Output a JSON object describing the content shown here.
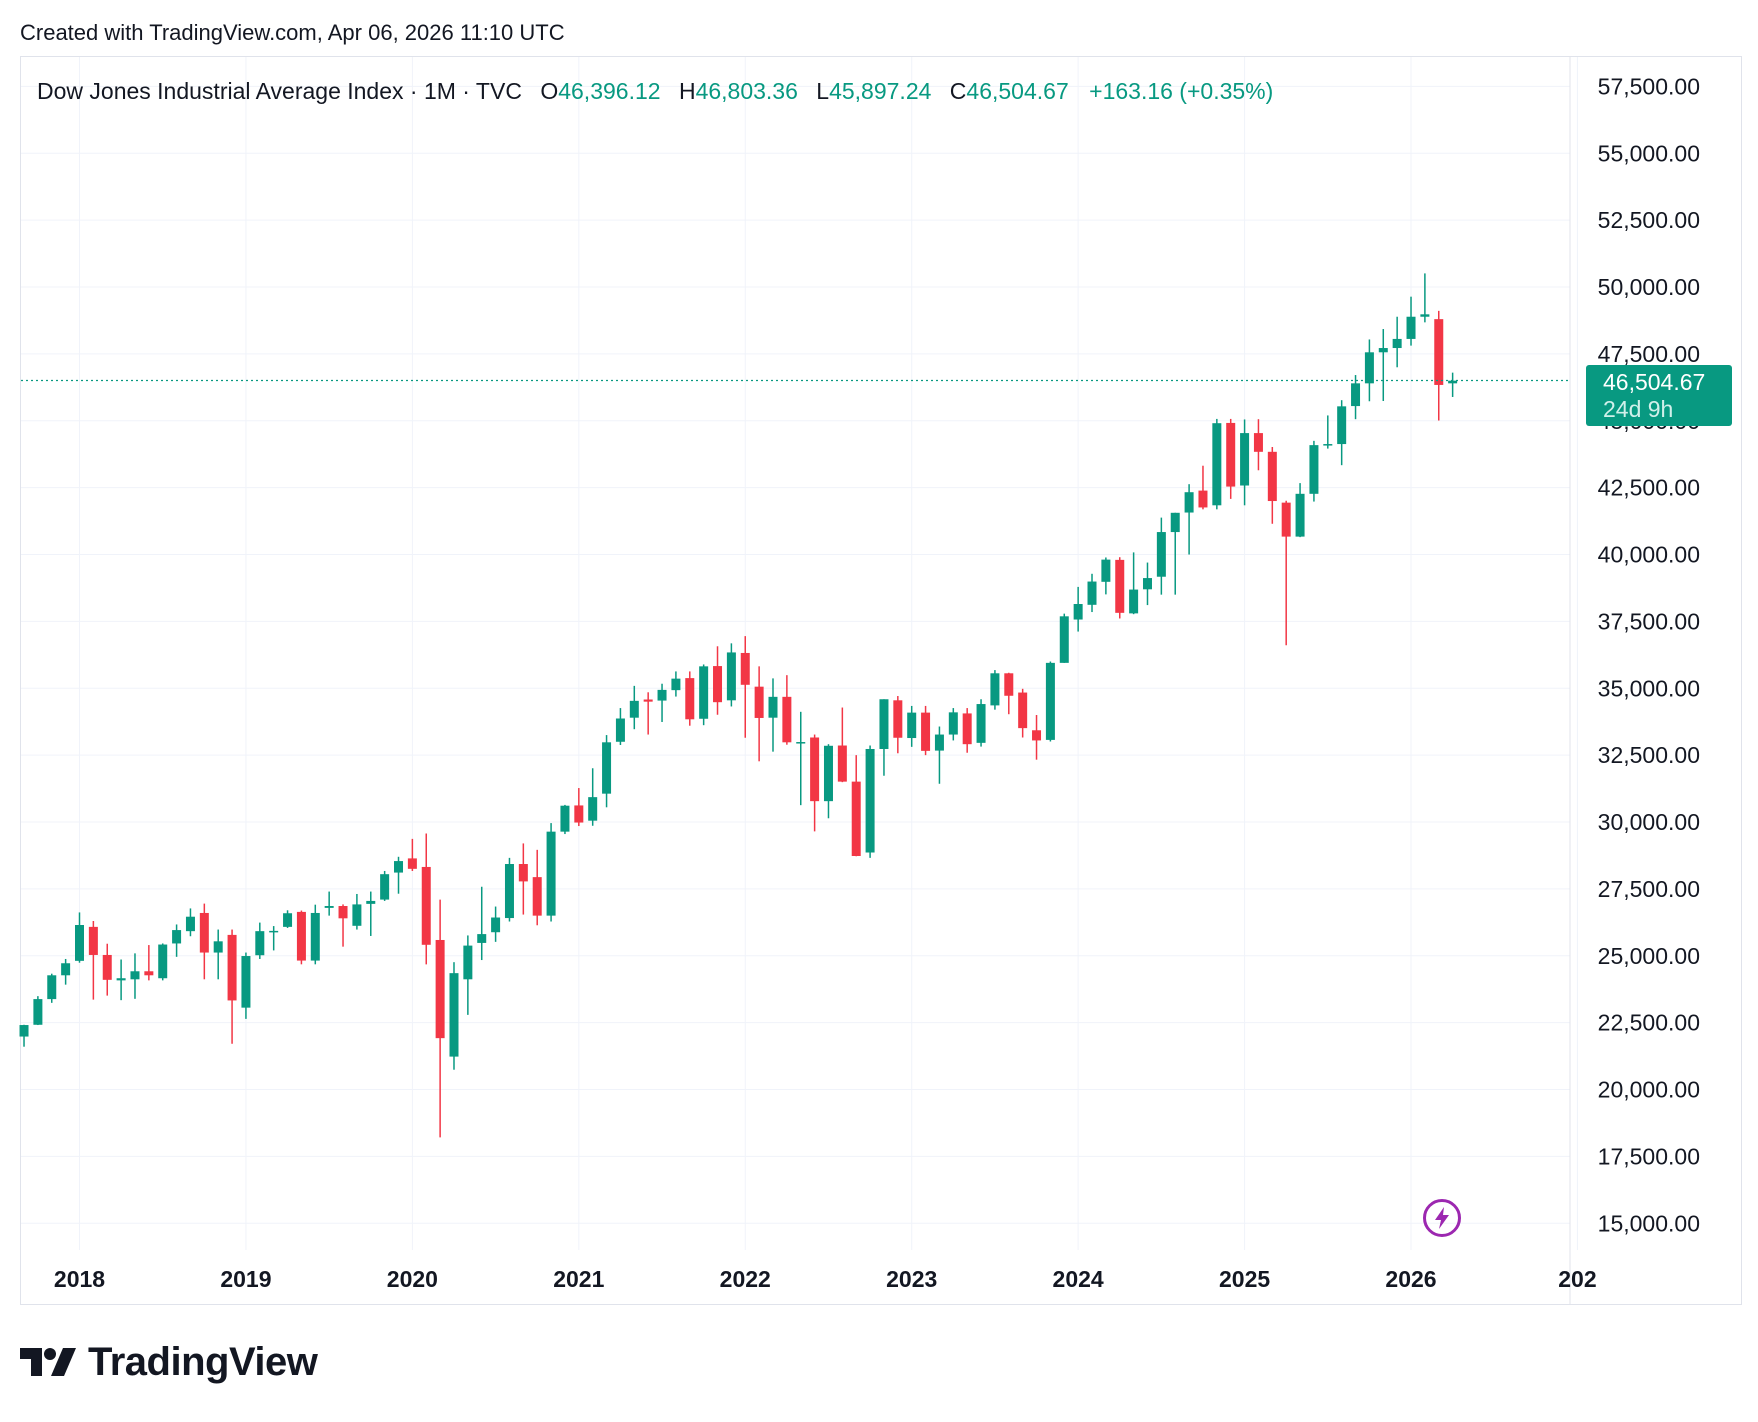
{
  "header": {
    "created": "Created with TradingView.com, Apr 06, 2026 11:10 UTC"
  },
  "legend": {
    "symbol": "Dow Jones Industrial Average Index · 1M · TVC",
    "open_label": "O",
    "open": "46,396.12",
    "high_label": "H",
    "high": "46,803.36",
    "low_label": "L",
    "low": "45,897.24",
    "close_label": "C",
    "close": "46,504.67",
    "change": "+163.16 (+0.35%)"
  },
  "price_tag": {
    "price": "46,504.67",
    "countdown": "24d 9h"
  },
  "brand": {
    "name": "TradingView"
  },
  "colors": {
    "up": "#089981",
    "down": "#f23645",
    "grid": "#f0f3fa",
    "text": "#131722",
    "bolt": "#9c27b0"
  },
  "icons": {
    "lightning": "lightning-icon",
    "logo": "tradingview-logo-icon"
  },
  "chart_data": {
    "type": "candlestick",
    "interval": "1M",
    "y_label_format": "2 decimals, thousands separator",
    "ylim": [
      14000,
      58600
    ],
    "y_ticks": [
      15000,
      17500,
      20000,
      22500,
      25000,
      27500,
      30000,
      32500,
      35000,
      37500,
      40000,
      42500,
      45000,
      47500,
      50000,
      52500,
      55000,
      57500
    ],
    "y_tick_labels": [
      "15,000.00",
      "17,500.00",
      "20,000.00",
      "22,500.00",
      "25,000.00",
      "27,500.00",
      "30,000.00",
      "32,500.00",
      "35,000.00",
      "37,500.00",
      "40,000.00",
      "42,500.00",
      "45,000.00",
      "47,500.00",
      "50,000.00",
      "52,500.00",
      "55,000.00",
      "57,500.00"
    ],
    "x_labels": [
      "2018",
      "2019",
      "2020",
      "2021",
      "2022",
      "2023",
      "2024",
      "2025",
      "2026",
      "202"
    ],
    "x_label_dates": [
      "2018-01",
      "2019-01",
      "2020-01",
      "2021-01",
      "2022-01",
      "2023-01",
      "2024-01",
      "2025-01",
      "2026-01",
      "2027-01"
    ],
    "last_price": 46504.67,
    "candles": [
      {
        "d": "2017-09",
        "o": 21980,
        "h": 22420,
        "l": 21600,
        "c": 22410
      },
      {
        "d": "2017-10",
        "o": 22420,
        "h": 23490,
        "l": 22410,
        "c": 23380
      },
      {
        "d": "2017-11",
        "o": 23380,
        "h": 24330,
        "l": 23240,
        "c": 24270
      },
      {
        "d": "2017-12",
        "o": 24270,
        "h": 24880,
        "l": 23920,
        "c": 24720
      },
      {
        "d": "2018-01",
        "o": 24810,
        "h": 26620,
        "l": 24740,
        "c": 26150
      },
      {
        "d": "2018-02",
        "o": 26080,
        "h": 26300,
        "l": 23360,
        "c": 25030
      },
      {
        "d": "2018-03",
        "o": 25030,
        "h": 25450,
        "l": 23510,
        "c": 24100
      },
      {
        "d": "2018-04",
        "o": 24080,
        "h": 24860,
        "l": 23340,
        "c": 24160
      },
      {
        "d": "2018-05",
        "o": 24120,
        "h": 25090,
        "l": 23390,
        "c": 24420
      },
      {
        "d": "2018-06",
        "o": 24420,
        "h": 25400,
        "l": 24080,
        "c": 24270
      },
      {
        "d": "2018-07",
        "o": 24160,
        "h": 25460,
        "l": 24080,
        "c": 25420
      },
      {
        "d": "2018-08",
        "o": 25460,
        "h": 26170,
        "l": 24960,
        "c": 25960
      },
      {
        "d": "2018-09",
        "o": 25920,
        "h": 26770,
        "l": 25730,
        "c": 26460
      },
      {
        "d": "2018-10",
        "o": 26600,
        "h": 26950,
        "l": 24120,
        "c": 25120
      },
      {
        "d": "2018-11",
        "o": 25120,
        "h": 25980,
        "l": 24120,
        "c": 25540
      },
      {
        "d": "2018-12",
        "o": 25780,
        "h": 25980,
        "l": 21710,
        "c": 23330
      },
      {
        "d": "2019-01",
        "o": 23060,
        "h": 25120,
        "l": 22640,
        "c": 24990
      },
      {
        "d": "2019-02",
        "o": 25020,
        "h": 26240,
        "l": 24880,
        "c": 25920
      },
      {
        "d": "2019-03",
        "o": 25920,
        "h": 26110,
        "l": 25200,
        "c": 25930
      },
      {
        "d": "2019-04",
        "o": 26080,
        "h": 26700,
        "l": 26040,
        "c": 26590
      },
      {
        "d": "2019-05",
        "o": 26640,
        "h": 26690,
        "l": 24680,
        "c": 24820
      },
      {
        "d": "2019-06",
        "o": 24820,
        "h": 26910,
        "l": 24680,
        "c": 26600
      },
      {
        "d": "2019-07",
        "o": 26790,
        "h": 27400,
        "l": 26500,
        "c": 26860
      },
      {
        "d": "2019-08",
        "o": 26860,
        "h": 26920,
        "l": 25340,
        "c": 26400
      },
      {
        "d": "2019-09",
        "o": 26120,
        "h": 27310,
        "l": 25980,
        "c": 26920
      },
      {
        "d": "2019-10",
        "o": 26940,
        "h": 27400,
        "l": 25740,
        "c": 27050
      },
      {
        "d": "2019-11",
        "o": 27100,
        "h": 28170,
        "l": 27050,
        "c": 28050
      },
      {
        "d": "2019-12",
        "o": 28110,
        "h": 28700,
        "l": 27320,
        "c": 28540
      },
      {
        "d": "2020-01",
        "o": 28640,
        "h": 29370,
        "l": 28170,
        "c": 28250
      },
      {
        "d": "2020-02",
        "o": 28320,
        "h": 29570,
        "l": 24680,
        "c": 25410
      },
      {
        "d": "2020-03",
        "o": 25590,
        "h": 27100,
        "l": 18210,
        "c": 21920
      },
      {
        "d": "2020-04",
        "o": 21230,
        "h": 24760,
        "l": 20740,
        "c": 24350
      },
      {
        "d": "2020-05",
        "o": 24120,
        "h": 25760,
        "l": 22790,
        "c": 25380
      },
      {
        "d": "2020-06",
        "o": 25480,
        "h": 27580,
        "l": 24840,
        "c": 25810
      },
      {
        "d": "2020-07",
        "o": 25880,
        "h": 26840,
        "l": 25520,
        "c": 26430
      },
      {
        "d": "2020-08",
        "o": 26410,
        "h": 28660,
        "l": 26280,
        "c": 28430
      },
      {
        "d": "2020-09",
        "o": 28430,
        "h": 29200,
        "l": 26540,
        "c": 27780
      },
      {
        "d": "2020-10",
        "o": 27940,
        "h": 28960,
        "l": 26140,
        "c": 26500
      },
      {
        "d": "2020-11",
        "o": 26500,
        "h": 29960,
        "l": 26280,
        "c": 29640
      },
      {
        "d": "2020-12",
        "o": 29640,
        "h": 30640,
        "l": 29550,
        "c": 30610
      },
      {
        "d": "2021-01",
        "o": 30620,
        "h": 31270,
        "l": 29850,
        "c": 29980
      },
      {
        "d": "2021-02",
        "o": 30050,
        "h": 32010,
        "l": 29860,
        "c": 30930
      },
      {
        "d": "2021-03",
        "o": 31060,
        "h": 33250,
        "l": 30550,
        "c": 32980
      },
      {
        "d": "2021-04",
        "o": 33000,
        "h": 34260,
        "l": 32880,
        "c": 33870
      },
      {
        "d": "2021-05",
        "o": 33900,
        "h": 35090,
        "l": 33470,
        "c": 34530
      },
      {
        "d": "2021-06",
        "o": 34580,
        "h": 34850,
        "l": 33270,
        "c": 34500
      },
      {
        "d": "2021-07",
        "o": 34540,
        "h": 35170,
        "l": 33740,
        "c": 34940
      },
      {
        "d": "2021-08",
        "o": 34930,
        "h": 35630,
        "l": 34690,
        "c": 35360
      },
      {
        "d": "2021-09",
        "o": 35380,
        "h": 35630,
        "l": 33600,
        "c": 33840
      },
      {
        "d": "2021-10",
        "o": 33860,
        "h": 35890,
        "l": 33620,
        "c": 35820
      },
      {
        "d": "2021-11",
        "o": 35830,
        "h": 36570,
        "l": 34010,
        "c": 34480
      },
      {
        "d": "2021-12",
        "o": 34550,
        "h": 36680,
        "l": 34320,
        "c": 36340
      },
      {
        "d": "2022-01",
        "o": 36320,
        "h": 36950,
        "l": 33150,
        "c": 35130
      },
      {
        "d": "2022-02",
        "o": 35060,
        "h": 35820,
        "l": 32270,
        "c": 33890
      },
      {
        "d": "2022-03",
        "o": 33900,
        "h": 35370,
        "l": 32630,
        "c": 34680
      },
      {
        "d": "2022-04",
        "o": 34680,
        "h": 35490,
        "l": 32890,
        "c": 32980
      },
      {
        "d": "2022-05",
        "o": 32980,
        "h": 34120,
        "l": 30630,
        "c": 32990
      },
      {
        "d": "2022-06",
        "o": 33160,
        "h": 33270,
        "l": 29650,
        "c": 30780
      },
      {
        "d": "2022-07",
        "o": 30780,
        "h": 32910,
        "l": 30140,
        "c": 32850
      },
      {
        "d": "2022-08",
        "o": 32860,
        "h": 34280,
        "l": 31490,
        "c": 31510
      },
      {
        "d": "2022-09",
        "o": 31510,
        "h": 32500,
        "l": 28720,
        "c": 28730
      },
      {
        "d": "2022-10",
        "o": 28860,
        "h": 32860,
        "l": 28660,
        "c": 32730
      },
      {
        "d": "2022-11",
        "o": 32730,
        "h": 34590,
        "l": 31730,
        "c": 34590
      },
      {
        "d": "2022-12",
        "o": 34550,
        "h": 34710,
        "l": 32570,
        "c": 33150
      },
      {
        "d": "2023-01",
        "o": 33140,
        "h": 34340,
        "l": 32810,
        "c": 34090
      },
      {
        "d": "2023-02",
        "o": 34090,
        "h": 34340,
        "l": 32500,
        "c": 32660
      },
      {
        "d": "2023-03",
        "o": 32670,
        "h": 33570,
        "l": 31430,
        "c": 33270
      },
      {
        "d": "2023-04",
        "o": 33270,
        "h": 34260,
        "l": 33050,
        "c": 34100
      },
      {
        "d": "2023-05",
        "o": 34060,
        "h": 34260,
        "l": 32590,
        "c": 32910
      },
      {
        "d": "2023-06",
        "o": 32960,
        "h": 34590,
        "l": 32820,
        "c": 34410
      },
      {
        "d": "2023-07",
        "o": 34360,
        "h": 35680,
        "l": 34200,
        "c": 35560
      },
      {
        "d": "2023-08",
        "o": 35560,
        "h": 35580,
        "l": 34030,
        "c": 34720
      },
      {
        "d": "2023-09",
        "o": 34840,
        "h": 34980,
        "l": 33160,
        "c": 33510
      },
      {
        "d": "2023-10",
        "o": 33430,
        "h": 34000,
        "l": 32330,
        "c": 33050
      },
      {
        "d": "2023-11",
        "o": 33070,
        "h": 36000,
        "l": 33010,
        "c": 35950
      },
      {
        "d": "2023-12",
        "o": 35950,
        "h": 37790,
        "l": 35950,
        "c": 37690
      },
      {
        "d": "2024-01",
        "o": 37570,
        "h": 38790,
        "l": 37120,
        "c": 38150
      },
      {
        "d": "2024-02",
        "o": 38120,
        "h": 39280,
        "l": 37850,
        "c": 38990
      },
      {
        "d": "2024-03",
        "o": 38980,
        "h": 39890,
        "l": 38510,
        "c": 39810
      },
      {
        "d": "2024-04",
        "o": 39800,
        "h": 39900,
        "l": 37610,
        "c": 37820
      },
      {
        "d": "2024-05",
        "o": 37800,
        "h": 40080,
        "l": 37770,
        "c": 38690
      },
      {
        "d": "2024-06",
        "o": 38700,
        "h": 39700,
        "l": 38110,
        "c": 39120
      },
      {
        "d": "2024-07",
        "o": 39170,
        "h": 41380,
        "l": 38500,
        "c": 40840
      },
      {
        "d": "2024-08",
        "o": 40840,
        "h": 41560,
        "l": 38500,
        "c": 41560
      },
      {
        "d": "2024-09",
        "o": 41570,
        "h": 42630,
        "l": 40000,
        "c": 42330
      },
      {
        "d": "2024-10",
        "o": 42390,
        "h": 43320,
        "l": 41690,
        "c": 41760
      },
      {
        "d": "2024-11",
        "o": 41840,
        "h": 45070,
        "l": 41690,
        "c": 44910
      },
      {
        "d": "2024-12",
        "o": 44920,
        "h": 45070,
        "l": 42080,
        "c": 42540
      },
      {
        "d": "2025-01",
        "o": 42580,
        "h": 45050,
        "l": 41840,
        "c": 44540
      },
      {
        "d": "2025-02",
        "o": 44540,
        "h": 45060,
        "l": 43150,
        "c": 43840
      },
      {
        "d": "2025-03",
        "o": 43840,
        "h": 44020,
        "l": 41150,
        "c": 42000
      },
      {
        "d": "2025-04",
        "o": 41940,
        "h": 42010,
        "l": 36610,
        "c": 40670
      },
      {
        "d": "2025-05",
        "o": 40670,
        "h": 42670,
        "l": 40650,
        "c": 42270
      },
      {
        "d": "2025-06",
        "o": 42270,
        "h": 44250,
        "l": 41980,
        "c": 44090
      },
      {
        "d": "2025-07",
        "o": 44110,
        "h": 45200,
        "l": 43960,
        "c": 44130
      },
      {
        "d": "2025-08",
        "o": 44130,
        "h": 45770,
        "l": 43340,
        "c": 45540
      },
      {
        "d": "2025-09",
        "o": 45550,
        "h": 46710,
        "l": 45060,
        "c": 46400
      },
      {
        "d": "2025-10",
        "o": 46400,
        "h": 48040,
        "l": 45730,
        "c": 47560
      },
      {
        "d": "2025-11",
        "o": 47560,
        "h": 48430,
        "l": 45740,
        "c": 47720
      },
      {
        "d": "2025-12",
        "o": 47720,
        "h": 48890,
        "l": 47000,
        "c": 48060
      },
      {
        "d": "2026-01",
        "o": 48060,
        "h": 49640,
        "l": 47810,
        "c": 48890
      },
      {
        "d": "2026-02",
        "o": 48890,
        "h": 50510,
        "l": 48680,
        "c": 48980
      },
      {
        "d": "2026-03",
        "o": 48800,
        "h": 49110,
        "l": 45010,
        "c": 46340
      },
      {
        "d": "2026-04",
        "o": 46400,
        "h": 46800,
        "l": 45890,
        "c": 46500
      }
    ]
  }
}
